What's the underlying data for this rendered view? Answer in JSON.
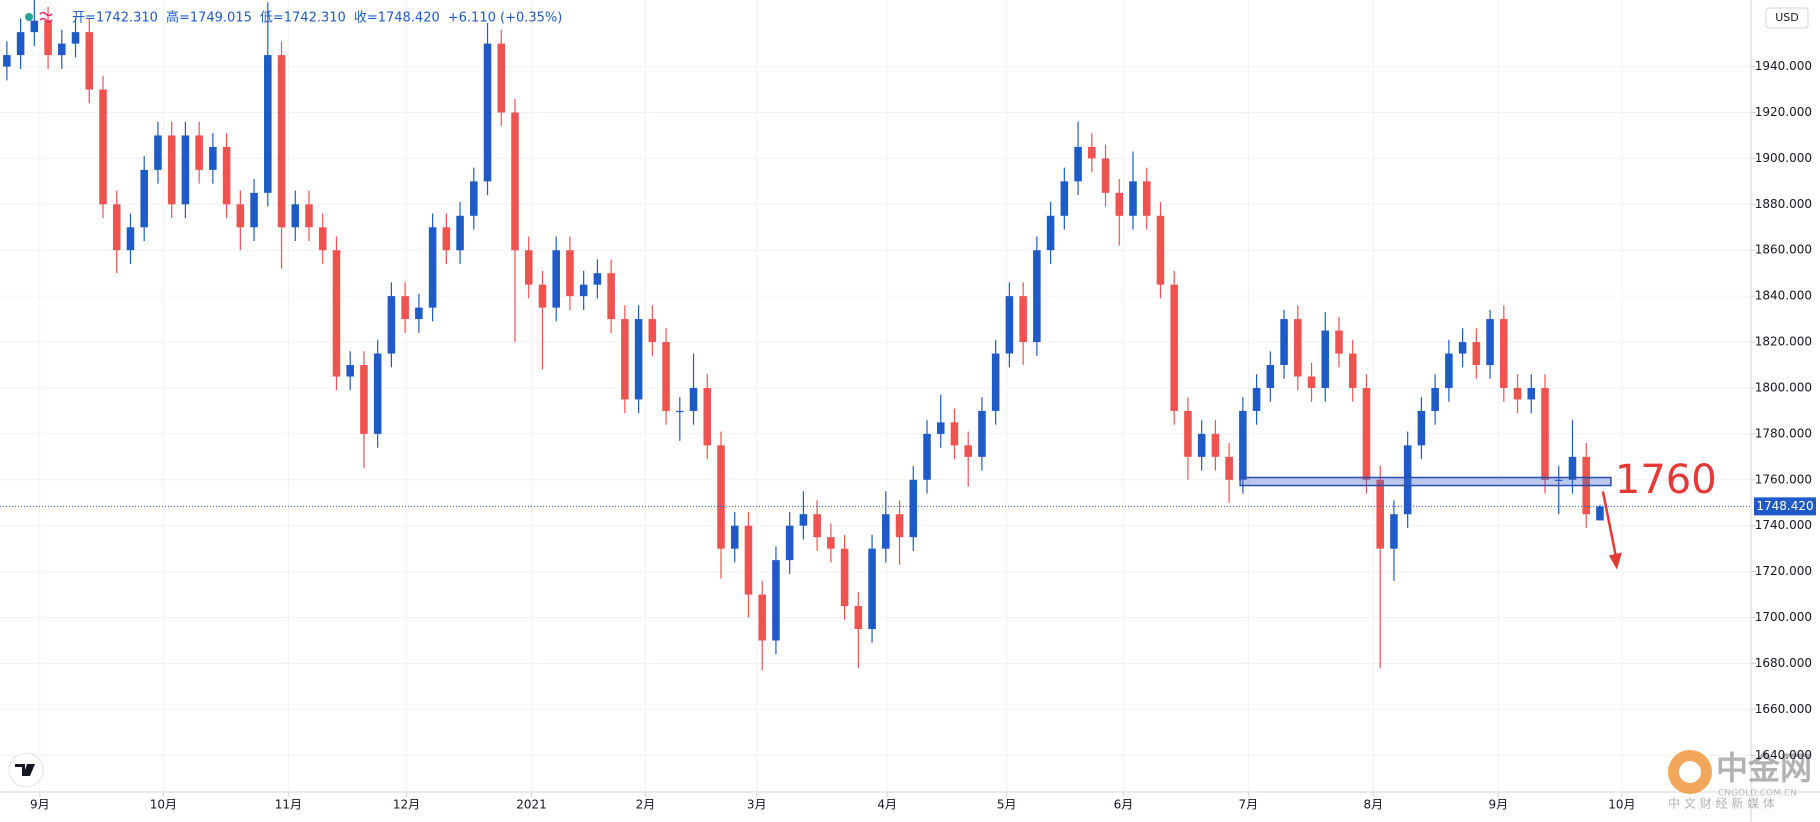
{
  "chart_data": {
    "type": "candlestick",
    "header_items": [
      "开=1742.310",
      "高=1749.015",
      "低=1742.310",
      "收=1748.420",
      "+6.110 (+0.35%)"
    ],
    "currency": "USD",
    "up_color": "#1e5bc6",
    "down_color": "#ef5350",
    "grid": true,
    "candles": [
      [
        1940,
        1951,
        1934,
        1945
      ],
      [
        1945,
        1961,
        1939,
        1955
      ],
      [
        1955,
        1972,
        1949,
        1960
      ],
      [
        1960,
        1966,
        1939,
        1945
      ],
      [
        1945,
        1956,
        1939,
        1950
      ],
      [
        1950,
        1961,
        1944,
        1955
      ],
      [
        1955,
        1961,
        1924,
        1930
      ],
      [
        1930,
        1936,
        1874,
        1880
      ],
      [
        1880,
        1886,
        1850,
        1860
      ],
      [
        1860,
        1876,
        1854,
        1870
      ],
      [
        1870,
        1901,
        1864,
        1895
      ],
      [
        1895,
        1916,
        1889,
        1910
      ],
      [
        1910,
        1916,
        1874,
        1880
      ],
      [
        1880,
        1916,
        1874,
        1910
      ],
      [
        1910,
        1916,
        1889,
        1895
      ],
      [
        1895,
        1911,
        1889,
        1905
      ],
      [
        1905,
        1911,
        1874,
        1880
      ],
      [
        1880,
        1886,
        1860,
        1870
      ],
      [
        1870,
        1891,
        1864,
        1885
      ],
      [
        1885,
        1968,
        1879,
        1945
      ],
      [
        1945,
        1951,
        1852,
        1870
      ],
      [
        1870,
        1886,
        1864,
        1880
      ],
      [
        1880,
        1886,
        1864,
        1870
      ],
      [
        1870,
        1876,
        1854,
        1860
      ],
      [
        1860,
        1866,
        1799,
        1805
      ],
      [
        1805,
        1816,
        1799,
        1810
      ],
      [
        1810,
        1816,
        1765,
        1780
      ],
      [
        1780,
        1821,
        1774,
        1815
      ],
      [
        1815,
        1846,
        1809,
        1840
      ],
      [
        1840,
        1846,
        1824,
        1830
      ],
      [
        1830,
        1841,
        1824,
        1835
      ],
      [
        1835,
        1876,
        1829,
        1870
      ],
      [
        1870,
        1876,
        1854,
        1860
      ],
      [
        1860,
        1881,
        1854,
        1875
      ],
      [
        1875,
        1896,
        1869,
        1890
      ],
      [
        1890,
        1959,
        1884,
        1950
      ],
      [
        1950,
        1956,
        1914,
        1920
      ],
      [
        1920,
        1926,
        1820,
        1860
      ],
      [
        1860,
        1866,
        1839,
        1845
      ],
      [
        1845,
        1851,
        1808,
        1835
      ],
      [
        1835,
        1866,
        1829,
        1860
      ],
      [
        1860,
        1866,
        1834,
        1840
      ],
      [
        1840,
        1851,
        1834,
        1845
      ],
      [
        1845,
        1856,
        1839,
        1850
      ],
      [
        1850,
        1856,
        1824,
        1830
      ],
      [
        1830,
        1836,
        1789,
        1795
      ],
      [
        1795,
        1836,
        1789,
        1830
      ],
      [
        1830,
        1836,
        1814,
        1820
      ],
      [
        1820,
        1826,
        1784,
        1790
      ],
      [
        1790,
        1796,
        1777,
        1790
      ],
      [
        1790,
        1815,
        1784,
        1800
      ],
      [
        1800,
        1806,
        1769,
        1775
      ],
      [
        1775,
        1781,
        1717,
        1730
      ],
      [
        1730,
        1746,
        1724,
        1740
      ],
      [
        1740,
        1746,
        1700,
        1710
      ],
      [
        1710,
        1716,
        1677,
        1690
      ],
      [
        1690,
        1731,
        1684,
        1725
      ],
      [
        1725,
        1746,
        1719,
        1740
      ],
      [
        1740,
        1755,
        1734,
        1745
      ],
      [
        1745,
        1751,
        1729,
        1735
      ],
      [
        1735,
        1741,
        1724,
        1730
      ],
      [
        1730,
        1736,
        1699,
        1705
      ],
      [
        1705,
        1711,
        1678,
        1695
      ],
      [
        1695,
        1736,
        1689,
        1730
      ],
      [
        1730,
        1755,
        1724,
        1745
      ],
      [
        1745,
        1751,
        1723,
        1735
      ],
      [
        1735,
        1766,
        1729,
        1760
      ],
      [
        1760,
        1786,
        1754,
        1780
      ],
      [
        1780,
        1797,
        1774,
        1785
      ],
      [
        1785,
        1791,
        1769,
        1775
      ],
      [
        1775,
        1781,
        1757,
        1770
      ],
      [
        1770,
        1796,
        1764,
        1790
      ],
      [
        1790,
        1821,
        1784,
        1815
      ],
      [
        1815,
        1846,
        1809,
        1840
      ],
      [
        1840,
        1846,
        1810,
        1820
      ],
      [
        1820,
        1866,
        1814,
        1860
      ],
      [
        1860,
        1881,
        1854,
        1875
      ],
      [
        1875,
        1896,
        1869,
        1890
      ],
      [
        1890,
        1916,
        1884,
        1905
      ],
      [
        1905,
        1911,
        1894,
        1900
      ],
      [
        1900,
        1906,
        1879,
        1885
      ],
      [
        1885,
        1891,
        1862,
        1875
      ],
      [
        1875,
        1903,
        1869,
        1890
      ],
      [
        1890,
        1896,
        1869,
        1875
      ],
      [
        1875,
        1881,
        1839,
        1845
      ],
      [
        1845,
        1851,
        1784,
        1790
      ],
      [
        1790,
        1796,
        1760,
        1770
      ],
      [
        1770,
        1786,
        1764,
        1780
      ],
      [
        1780,
        1786,
        1764,
        1770
      ],
      [
        1770,
        1776,
        1750,
        1760
      ],
      [
        1760,
        1796,
        1754,
        1790
      ],
      [
        1790,
        1806,
        1784,
        1800
      ],
      [
        1800,
        1816,
        1794,
        1810
      ],
      [
        1810,
        1834,
        1804,
        1830
      ],
      [
        1830,
        1836,
        1799,
        1805
      ],
      [
        1805,
        1811,
        1794,
        1800
      ],
      [
        1800,
        1833,
        1794,
        1825
      ],
      [
        1825,
        1831,
        1809,
        1815
      ],
      [
        1815,
        1821,
        1794,
        1800
      ],
      [
        1800,
        1806,
        1754,
        1760
      ],
      [
        1760,
        1766,
        1678,
        1730
      ],
      [
        1730,
        1751,
        1716,
        1745
      ],
      [
        1745,
        1781,
        1739,
        1775
      ],
      [
        1775,
        1796,
        1769,
        1790
      ],
      [
        1790,
        1806,
        1784,
        1800
      ],
      [
        1800,
        1821,
        1794,
        1815
      ],
      [
        1815,
        1826,
        1809,
        1820
      ],
      [
        1820,
        1826,
        1804,
        1810
      ],
      [
        1810,
        1834,
        1804,
        1830
      ],
      [
        1830,
        1836,
        1794,
        1800
      ],
      [
        1800,
        1806,
        1789,
        1795
      ],
      [
        1795,
        1806,
        1789,
        1800
      ],
      [
        1800,
        1806,
        1754,
        1760
      ],
      [
        1760,
        1766,
        1745,
        1760
      ],
      [
        1760,
        1786,
        1754,
        1770
      ],
      [
        1770,
        1776,
        1739,
        1745
      ],
      [
        1742.31,
        1749.015,
        1742.31,
        1748.42
      ]
    ],
    "xlim": [
      -0.5,
      127
    ],
    "xticks": [
      {
        "value": 2.4,
        "label": "9月"
      },
      {
        "value": 11.4,
        "label": "10月"
      },
      {
        "value": 20.5,
        "label": "11月"
      },
      {
        "value": 29.1,
        "label": "12月"
      },
      {
        "value": 38.2,
        "label": "2021"
      },
      {
        "value": 46.5,
        "label": "2月"
      },
      {
        "value": 54.6,
        "label": "3月"
      },
      {
        "value": 64.1,
        "label": "4月"
      },
      {
        "value": 72.8,
        "label": "5月"
      },
      {
        "value": 81.3,
        "label": "6月"
      },
      {
        "value": 90.4,
        "label": "7月"
      },
      {
        "value": 99.5,
        "label": "8月"
      },
      {
        "value": 108.6,
        "label": "9月"
      },
      {
        "value": 117.6,
        "label": "10月"
      }
    ],
    "ylim": [
      1624,
      1969
    ],
    "yticks": [
      {
        "value": 1640,
        "label": "1640.000"
      },
      {
        "value": 1660,
        "label": "1660.000"
      },
      {
        "value": 1680,
        "label": "1680.000"
      },
      {
        "value": 1700,
        "label": "1700.000"
      },
      {
        "value": 1720,
        "label": "1720.000"
      },
      {
        "value": 1740,
        "label": "1740.000"
      },
      {
        "value": 1760,
        "label": "1760.000"
      },
      {
        "value": 1780,
        "label": "1780.000"
      },
      {
        "value": 1800,
        "label": "1800.000"
      },
      {
        "value": 1820,
        "label": "1820.000"
      },
      {
        "value": 1840,
        "label": "1840.000"
      },
      {
        "value": 1860,
        "label": "1860.000"
      },
      {
        "value": 1880,
        "label": "1880.000"
      },
      {
        "value": 1900,
        "label": "1900.000"
      },
      {
        "value": 1920,
        "label": "1920.000"
      },
      {
        "value": 1940,
        "label": "1940.000"
      }
    ],
    "last_price": {
      "value": 1748.42,
      "label": "1748.420"
    },
    "zone": {
      "x_range": [
        89.8,
        116.8
      ],
      "y_range": [
        1757.5,
        1761
      ]
    },
    "annotation": {
      "value": 1760,
      "label": "1760"
    },
    "watermark": {
      "brand": "中金网",
      "site": "CNGOLD.COM.CN",
      "slogan": "中 文 财 经 新 媒 体"
    }
  }
}
